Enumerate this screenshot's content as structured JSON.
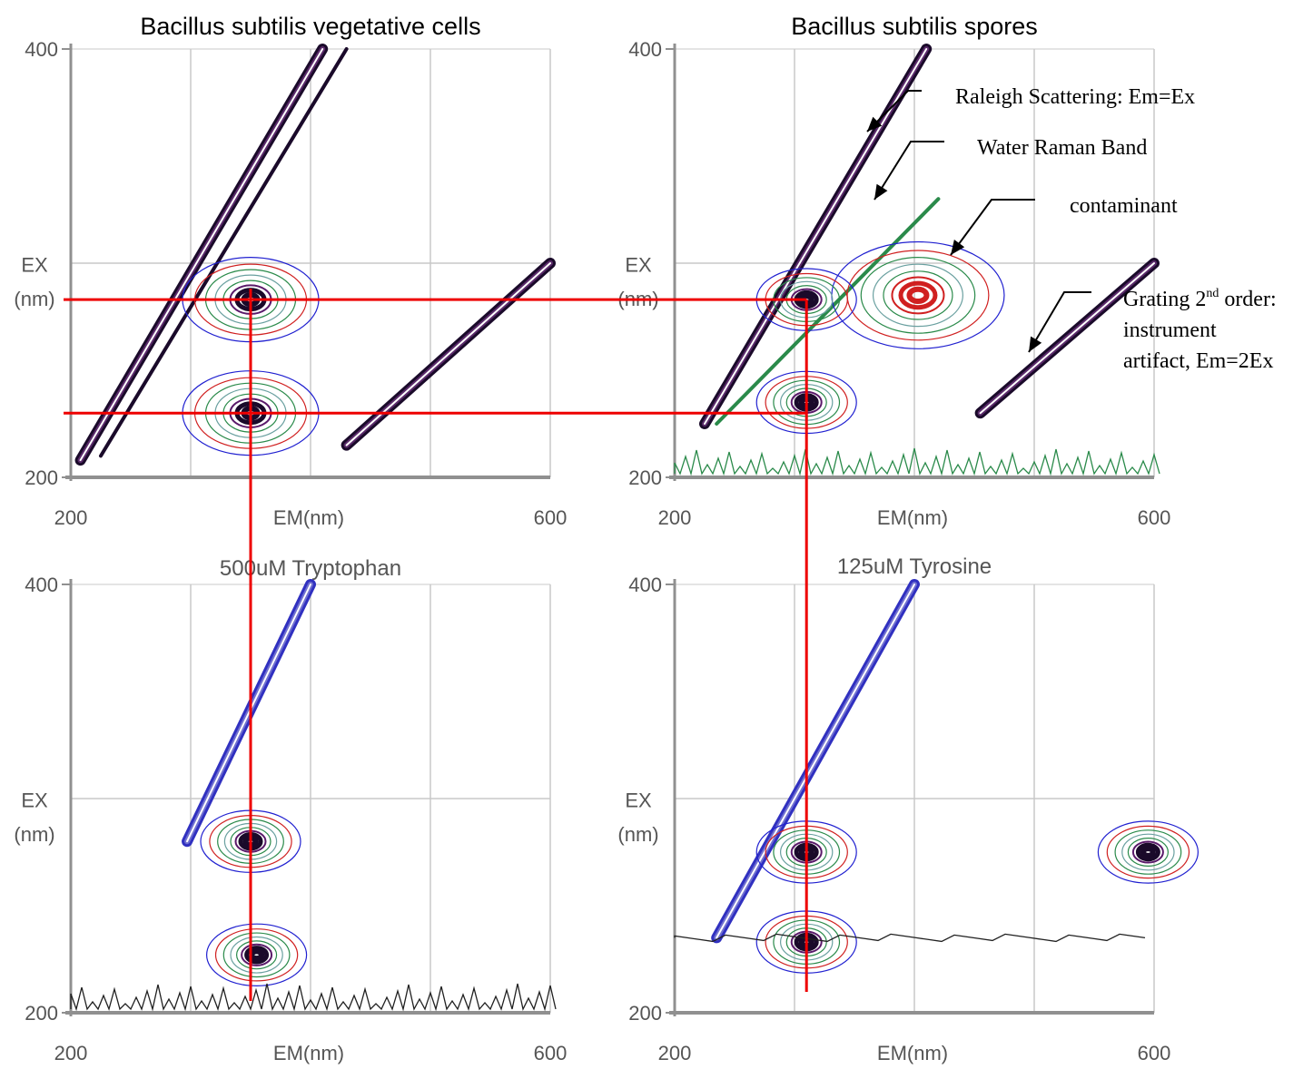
{
  "colors": {
    "background": "#ffffff",
    "grid": "#c8c8c8",
    "axis": "#909090",
    "tick_text": "#555555",
    "guide_line": "#ee0000",
    "contour_palette": [
      "#1a0a2a",
      "#5a1a6a",
      "#2a8a4a",
      "#6aa0a0",
      "#d02020",
      "#2020d0",
      "#6060c0",
      "#202020"
    ]
  },
  "chart_data": [
    {
      "type": "contour",
      "title": "Bacillus subtilis vegetative cells",
      "xlabel": "EM(nm)",
      "ylabel": "EX\n(nm)",
      "xlim": [
        200,
        600
      ],
      "ylim": [
        200,
        400
      ],
      "xticks": [
        "200",
        "EM(nm)",
        "600"
      ],
      "yticks": [
        "400",
        "200"
      ],
      "grid": true,
      "features": [
        {
          "name": "Rayleigh scattering",
          "kind": "band",
          "relation": "Em=Ex",
          "x": [
            208,
            410
          ],
          "y": [
            208,
            400
          ]
        },
        {
          "name": "Water Raman band",
          "kind": "band",
          "x": [
            225,
            430
          ],
          "y": [
            210,
            400
          ]
        },
        {
          "name": "Grating 2nd order",
          "kind": "band",
          "relation": "Em=2Ex",
          "x": [
            430,
            600
          ],
          "y": [
            215,
            300
          ]
        },
        {
          "name": "peak",
          "kind": "peak",
          "x": 350,
          "y": 283
        },
        {
          "name": "peak",
          "kind": "peak",
          "x": 350,
          "y": 230
        }
      ]
    },
    {
      "type": "contour",
      "title": "Bacillus subtilis spores",
      "xlabel": "EM(nm)",
      "ylabel": "EX\n(nm)",
      "xlim": [
        200,
        600
      ],
      "ylim": [
        200,
        400
      ],
      "xticks": [
        "200",
        "EM(nm)",
        "600"
      ],
      "yticks": [
        "400",
        "200"
      ],
      "grid": true,
      "features": [
        {
          "name": "Rayleigh scattering",
          "kind": "band",
          "relation": "Em=Ex",
          "x": [
            225,
            410
          ],
          "y": [
            225,
            400
          ]
        },
        {
          "name": "Water Raman band",
          "kind": "band",
          "x": [
            235,
            420
          ],
          "y": [
            225,
            330
          ]
        },
        {
          "name": "Grating 2nd order",
          "kind": "band",
          "relation": "Em=2Ex",
          "x": [
            455,
            600
          ],
          "y": [
            230,
            300
          ]
        },
        {
          "name": "contaminant",
          "kind": "peak",
          "x": 403,
          "y": 285
        },
        {
          "name": "peak",
          "kind": "peak",
          "x": 310,
          "y": 283
        },
        {
          "name": "peak",
          "kind": "peak",
          "x": 310,
          "y": 235
        }
      ]
    },
    {
      "type": "contour",
      "title": "500uM Tryptophan",
      "xlabel": "EM(nm)",
      "ylabel": "EX\n(nm)",
      "xlim": [
        200,
        600
      ],
      "ylim": [
        200,
        400
      ],
      "xticks": [
        "200",
        "EM(nm)",
        "600"
      ],
      "yticks": [
        "400",
        "200"
      ],
      "grid": true,
      "features": [
        {
          "name": "Rayleigh scattering",
          "kind": "band",
          "relation": "Em=Ex",
          "x": [
            297,
            400
          ],
          "y": [
            280,
            400
          ]
        },
        {
          "name": "peak",
          "kind": "peak",
          "x": 350,
          "y": 280
        },
        {
          "name": "peak",
          "kind": "peak",
          "x": 355,
          "y": 227
        }
      ]
    },
    {
      "type": "contour",
      "title": "125uM Tyrosine",
      "xlabel": "EM(nm)",
      "ylabel": "EX\n(nm)",
      "xlim": [
        200,
        600
      ],
      "ylim": [
        200,
        400
      ],
      "xticks": [
        "200",
        "EM(nm)",
        "600"
      ],
      "yticks": [
        "400",
        "200"
      ],
      "grid": true,
      "features": [
        {
          "name": "Rayleigh scattering",
          "kind": "band",
          "relation": "Em=Ex",
          "x": [
            235,
            400
          ],
          "y": [
            235,
            400
          ]
        },
        {
          "name": "peak",
          "kind": "peak",
          "x": 310,
          "y": 275
        },
        {
          "name": "peak",
          "kind": "peak",
          "x": 310,
          "y": 233
        },
        {
          "name": "edge feature",
          "kind": "peak",
          "x": 595,
          "y": 275
        }
      ]
    }
  ],
  "annotations": {
    "rayleigh": "Raleigh Scattering: Em=Ex",
    "raman": "Water Raman Band",
    "contaminant": "contaminant",
    "grating_prefix": "Grating 2",
    "grating_superscript": "nd",
    "grating_suffix": " order:",
    "grating_line2": "instrument",
    "grating_line3": "artifact, Em=2Ex"
  },
  "guide_lines": {
    "description_hidden": "",
    "horizontal_ex": [
      283,
      230
    ],
    "vertical_em_left": 350,
    "vertical_em_right": 310
  }
}
